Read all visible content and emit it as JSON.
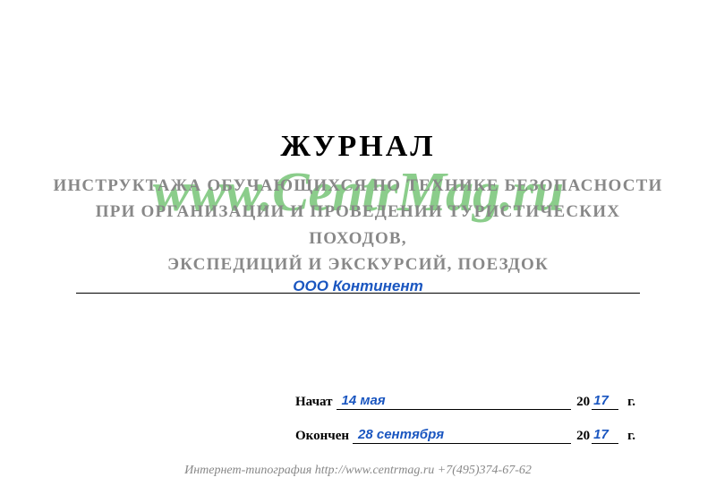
{
  "title": "ЖУРНАЛ",
  "subtitle_line1": "ИНСТРУКТАЖА ОБУЧАЮЩИХСЯ ПО ТЕХНИКЕ БЕЗОПАСНОСТИ",
  "subtitle_line2": "ПРИ ОРГАНИЗАЦИИ И ПРОВЕДЕНИИ ТУРИСТИЧЕСКИХ ПОХОДОВ,",
  "subtitle_line3": "ЭКСПЕДИЦИЙ И ЭКСКУРСИЙ, ПОЕЗДОК",
  "watermark": "www.CentrMag.ru",
  "organization": "ООО Континент",
  "dates": {
    "start_label": "Начат",
    "start_value": "14 мая",
    "start_year": "17",
    "end_label": "Окончен",
    "end_value": "28 сентября",
    "end_year": "17",
    "century_prefix": "20",
    "year_suffix": "г."
  },
  "footer": "Интернет-типография http://www.centrmag.ru +7(495)374-67-62",
  "colors": {
    "handwritten": "#1a56c0",
    "subtitle": "#888888",
    "watermark": "#6BBF6B",
    "text": "#000000",
    "footer": "#888888"
  },
  "typography": {
    "title_fontsize": 34,
    "subtitle_fontsize": 19,
    "watermark_fontsize": 62,
    "body_fontsize": 15,
    "footer_fontsize": 14
  }
}
